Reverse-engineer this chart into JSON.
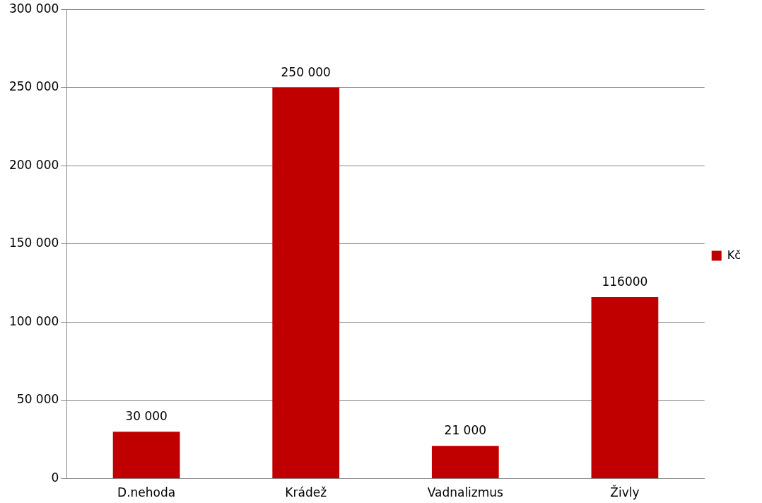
{
  "chart_data": {
    "type": "bar",
    "categories": [
      "D.nehoda",
      "Krádež",
      "Vadnalizmus",
      "Živly"
    ],
    "series": [
      {
        "name": "Kč",
        "color": "#c00000",
        "values": [
          30000,
          250000,
          21000,
          116000
        ],
        "value_labels": [
          "30 000",
          "250 000",
          "21 000",
          "116000"
        ]
      }
    ],
    "ylim": [
      0,
      300000
    ],
    "yticks": [
      {
        "value": 0,
        "label": "0"
      },
      {
        "value": 50000,
        "label": "50 000"
      },
      {
        "value": 100000,
        "label": "100 000"
      },
      {
        "value": 150000,
        "label": "150 000"
      },
      {
        "value": 200000,
        "label": "200 000"
      },
      {
        "value": 250000,
        "label": "250 000"
      },
      {
        "value": 300000,
        "label": "300 000"
      }
    ],
    "grid": "y",
    "legend": "right"
  }
}
